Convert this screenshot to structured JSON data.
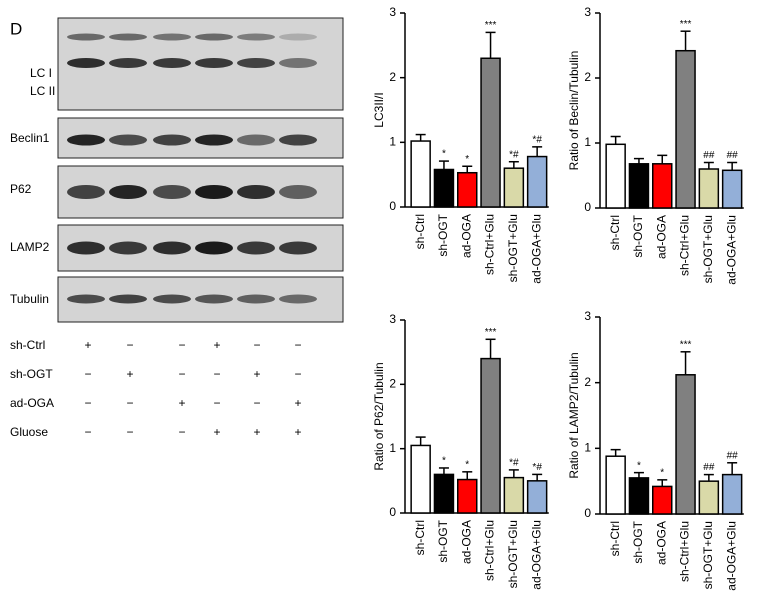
{
  "panel_label": "D",
  "blot": {
    "labels": [
      "LC I",
      "LC II",
      "Beclin1",
      "P62",
      "LAMP2",
      "Tubulin"
    ]
  },
  "treatment": {
    "rows": [
      {
        "label": "sh-Ctrl",
        "signs": [
          "+",
          "−",
          "−",
          "+",
          "−",
          "−"
        ]
      },
      {
        "label": "sh-OGT",
        "signs": [
          "−",
          "+",
          "−",
          "−",
          "+",
          "−"
        ]
      },
      {
        "label": "ad-OGA",
        "signs": [
          "−",
          "−",
          "+",
          "−",
          "−",
          "+"
        ]
      },
      {
        "label": "Gluose",
        "signs": [
          "−",
          "−",
          "−",
          "+",
          "+",
          "+"
        ]
      }
    ]
  },
  "chart_data": [
    {
      "type": "bar",
      "ylabel": "LC3II/I",
      "categories": [
        "sh-Ctrl",
        "sh-OGT",
        "ad-OGA",
        "sh-Ctrl+Glu",
        "sh-OGT+Glu",
        "ad-OGA+Glu"
      ],
      "values": [
        1.02,
        0.58,
        0.53,
        2.3,
        0.6,
        0.78
      ],
      "errors": [
        0.1,
        0.13,
        0.1,
        0.4,
        0.1,
        0.15
      ],
      "annotations": [
        null,
        "*",
        "*",
        "***",
        "*#",
        "*#"
      ],
      "colors": [
        "#ffffff",
        "#000000",
        "#ff0000",
        "#808080",
        "#d9d9a8",
        "#93afd8"
      ],
      "ylim": [
        0,
        3
      ],
      "yticks": [
        0,
        1,
        2,
        3
      ]
    },
    {
      "type": "bar",
      "ylabel": "Ratio of Beclin/Tubulin",
      "categories": [
        "sh-Ctrl",
        "sh-OGT",
        "ad-OGA",
        "sh-Ctrl+Glu",
        "sh-OGT+Glu",
        "ad-OGA+Glu"
      ],
      "values": [
        0.98,
        0.68,
        0.68,
        2.42,
        0.6,
        0.58
      ],
      "errors": [
        0.12,
        0.08,
        0.13,
        0.3,
        0.1,
        0.12
      ],
      "annotations": [
        null,
        null,
        null,
        "***",
        "##",
        "##"
      ],
      "colors": [
        "#ffffff",
        "#000000",
        "#ff0000",
        "#808080",
        "#d9d9a8",
        "#93afd8"
      ],
      "ylim": [
        0,
        3
      ],
      "yticks": [
        0,
        1,
        2,
        3
      ]
    },
    {
      "type": "bar",
      "ylabel": "Ratio of P62/Tubulin",
      "categories": [
        "sh-Ctrl",
        "sh-OGT",
        "ad-OGA",
        "sh-Ctrl+Glu",
        "sh-OGT+Glu",
        "ad-OGA+Glu"
      ],
      "values": [
        1.05,
        0.6,
        0.52,
        2.4,
        0.55,
        0.5
      ],
      "errors": [
        0.13,
        0.1,
        0.12,
        0.3,
        0.12,
        0.1
      ],
      "annotations": [
        null,
        "*",
        "*",
        "***",
        "*#",
        "*#"
      ],
      "colors": [
        "#ffffff",
        "#000000",
        "#ff0000",
        "#808080",
        "#d9d9a8",
        "#93afd8"
      ],
      "ylim": [
        0,
        3
      ],
      "yticks": [
        0,
        1,
        2,
        3
      ]
    },
    {
      "type": "bar",
      "ylabel": "Ratio of LAMP2/Tubulin",
      "categories": [
        "sh-Ctrl",
        "sh-OGT",
        "ad-OGA",
        "sh-Ctrl+Glu",
        "sh-OGT+Glu",
        "ad-OGA+Glu"
      ],
      "values": [
        0.88,
        0.55,
        0.42,
        2.12,
        0.5,
        0.6
      ],
      "errors": [
        0.1,
        0.08,
        0.1,
        0.35,
        0.1,
        0.18
      ],
      "annotations": [
        null,
        "*",
        "*",
        "***",
        "##",
        "##"
      ],
      "colors": [
        "#ffffff",
        "#000000",
        "#ff0000",
        "#808080",
        "#d9d9a8",
        "#93afd8"
      ],
      "ylim": [
        0,
        3
      ],
      "yticks": [
        0,
        1,
        2,
        3
      ]
    }
  ]
}
